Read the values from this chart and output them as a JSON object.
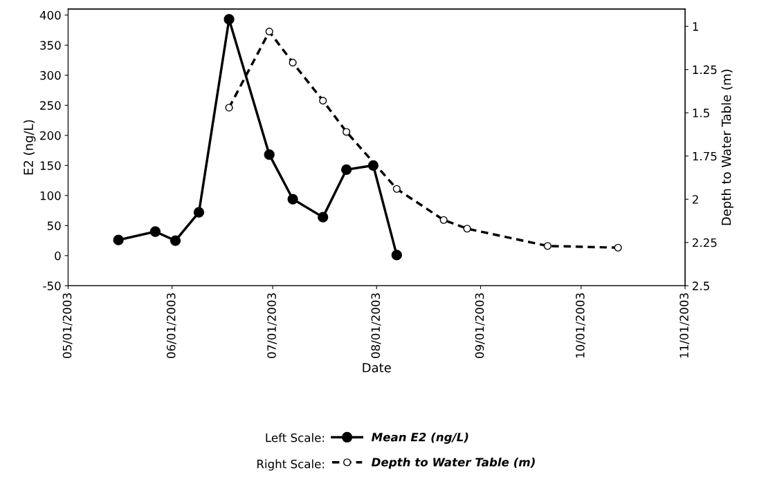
{
  "chart_data": {
    "type": "line",
    "xlabel": "Date",
    "ylabel": "E2 (ng/L)",
    "y2label": "Depth to Water Table (m)",
    "xlim": [
      "2003-05-01",
      "2003-11-01"
    ],
    "xticks": [
      {
        "value": "2003-05-01",
        "label": "05/01/2003"
      },
      {
        "value": "2003-06-01",
        "label": "06/01/2003"
      },
      {
        "value": "2003-07-01",
        "label": "07/01/2003"
      },
      {
        "value": "2003-08-01",
        "label": "08/01/2003"
      },
      {
        "value": "2003-09-01",
        "label": "09/01/2003"
      },
      {
        "value": "2003-10-01",
        "label": "10/01/2003"
      },
      {
        "value": "2003-11-01",
        "label": "11/01/2003"
      }
    ],
    "ylim": [
      -50,
      410
    ],
    "yticks": [
      -50,
      0,
      50,
      100,
      150,
      200,
      250,
      300,
      350,
      400
    ],
    "y2lim": [
      2.5,
      0.9
    ],
    "y2ticks": [
      1,
      1.25,
      1.5,
      1.75,
      2,
      2.25,
      2.5
    ],
    "grid": false,
    "legend": "bottom",
    "annotations": [
      "Left Scale:",
      "Right Scale:"
    ],
    "series": [
      {
        "name": "Mean E2 (ng/L)",
        "color": "#000000",
        "marker": "circle",
        "line_style": "solid",
        "x": [
          "2003-05-16",
          "2003-05-27",
          "2003-06-02",
          "2003-06-09",
          "2003-06-18",
          "2003-06-30",
          "2003-07-07",
          "2003-07-16",
          "2003-07-23",
          "2003-07-31",
          "2003-08-07"
        ],
        "values": [
          26,
          40,
          25,
          72,
          393,
          168,
          94,
          64,
          143,
          150,
          1
        ]
      },
      {
        "name": "Depth to Water Table (m)",
        "color": "#000000",
        "marker": "circle",
        "line_style": "dashed",
        "axis": "y2",
        "x": [
          "2003-06-18",
          "2003-06-30",
          "2003-07-07",
          "2003-07-16",
          "2003-07-23",
          "2003-08-07",
          "2003-08-21",
          "2003-08-28",
          "2003-09-21",
          "2003-10-12"
        ],
        "values": [
          1.47,
          1.03,
          1.21,
          1.43,
          1.61,
          1.94,
          2.12,
          2.17,
          2.27,
          2.28
        ]
      }
    ]
  }
}
